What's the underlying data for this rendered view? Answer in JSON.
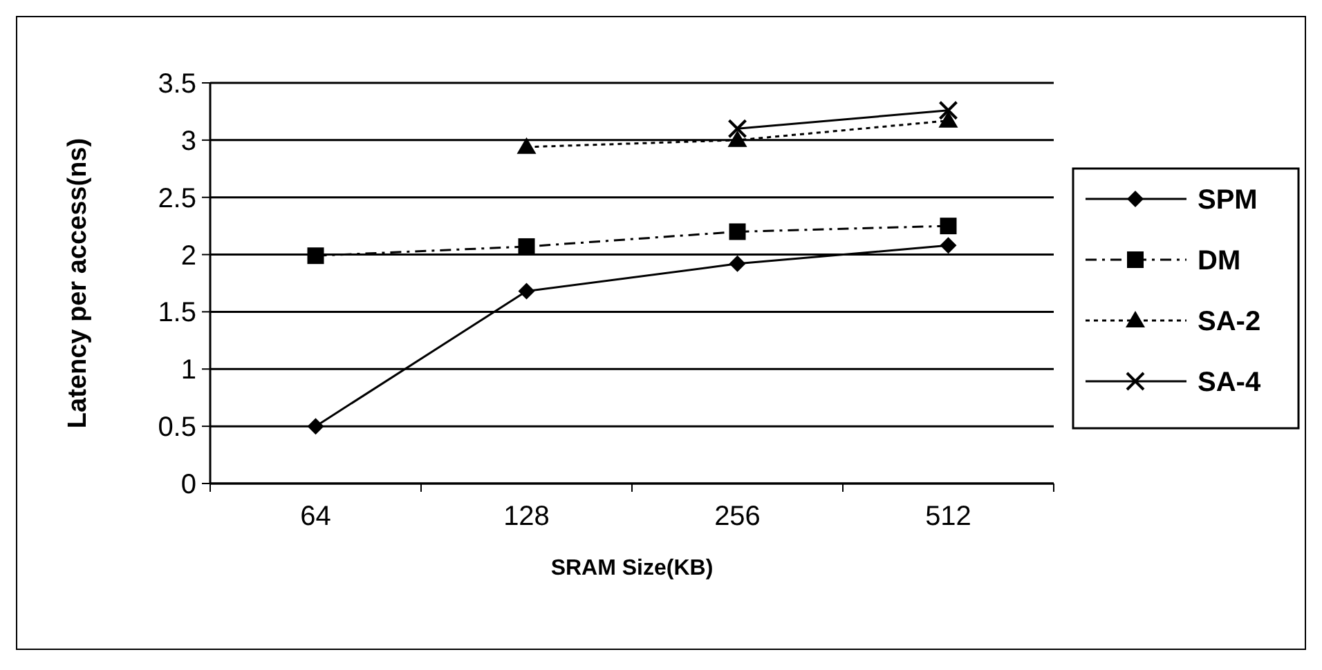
{
  "chart_data": {
    "type": "line",
    "xlabel": "SRAM Size(KB)",
    "ylabel": "Latency per access(ns)",
    "categories": [
      "64",
      "128",
      "256",
      "512"
    ],
    "ylim": [
      0,
      3.5
    ],
    "yticks": [
      0,
      0.5,
      1,
      1.5,
      2,
      2.5,
      3,
      3.5
    ],
    "grid": "y",
    "legend": "right",
    "series": [
      {
        "name": "SPM",
        "color": "#000000",
        "marker": "diamond",
        "line_style": "solid",
        "values": [
          0.5,
          1.68,
          1.92,
          2.08
        ]
      },
      {
        "name": "DM",
        "color": "#000000",
        "marker": "square",
        "line_style": "dashed",
        "values": [
          1.99,
          2.07,
          2.2,
          2.25
        ]
      },
      {
        "name": "SA-2",
        "color": "#000000",
        "marker": "triangle",
        "line_style": "dotted",
        "values": [
          null,
          2.94,
          3.0,
          3.17
        ]
      },
      {
        "name": "SA-4",
        "color": "#000000",
        "marker": "cross",
        "line_style": "solid",
        "values": [
          null,
          null,
          3.1,
          3.26
        ]
      }
    ]
  }
}
